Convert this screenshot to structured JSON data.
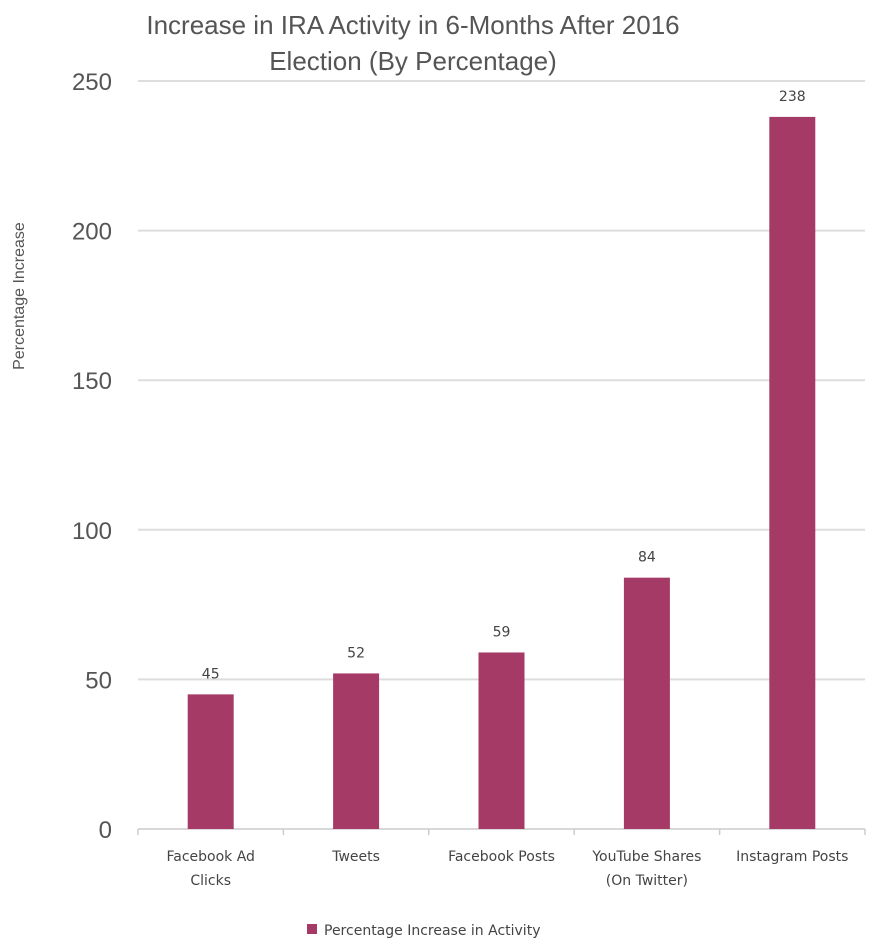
{
  "chart_data": {
    "type": "bar",
    "title_lines": [
      "Increase in IRA Activity in 6-Months After 2016",
      "Election (By Percentage)"
    ],
    "ylabel": "Percentage Increase",
    "xlabel": "",
    "categories": [
      [
        "Facebook Ad",
        "Clicks"
      ],
      [
        "Tweets"
      ],
      [
        "Facebook Posts"
      ],
      [
        "YouTube Shares",
        "(On Twitter)"
      ],
      [
        "Instagram Posts"
      ]
    ],
    "series": [
      {
        "name": "Percentage Increase in Activity",
        "values": [
          45,
          52,
          59,
          84,
          238
        ],
        "color": "#a63a66"
      }
    ],
    "ylim": [
      0,
      250
    ],
    "yticks": [
      0,
      50,
      100,
      150,
      200,
      250
    ],
    "grid": true,
    "legend_position": "bottom",
    "data_labels": true
  }
}
